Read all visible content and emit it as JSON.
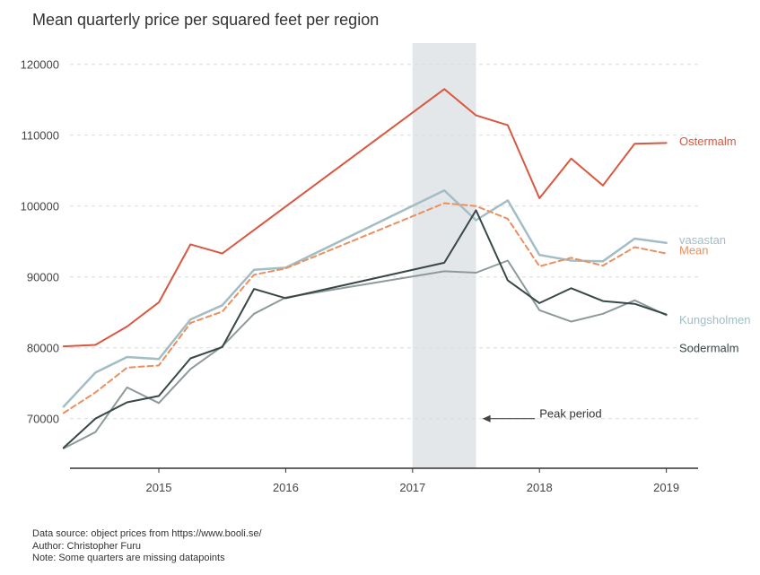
{
  "chart_data": {
    "type": "line",
    "title": "Mean quarterly price per squared feet per region",
    "xlabel": "",
    "ylabel": "",
    "xlim": [
      2014.3,
      2019.25
    ],
    "ylim": [
      63000,
      123000
    ],
    "xticks": [
      2015,
      2016,
      2017,
      2018,
      2019
    ],
    "yticks": [
      70000,
      80000,
      90000,
      100000,
      110000,
      120000
    ],
    "grid": "horizontal dashed",
    "legend": "inline labels at line ends",
    "highlight": {
      "x_start": 2017.0,
      "x_end": 2017.5,
      "color": "#e3e7ea"
    },
    "annotation": {
      "text": "Peak period",
      "arrow_to": [
        2017.55,
        70000
      ],
      "text_at": [
        2018.0,
        70000
      ]
    },
    "series": [
      {
        "name": "Ostermalm",
        "color": "#d9573f",
        "width": 2,
        "dash": "",
        "x": [
          2014.25,
          2014.5,
          2014.75,
          2015.0,
          2015.25,
          2015.5,
          2017.25,
          2017.5,
          2017.75,
          2018.0,
          2018.25,
          2018.5,
          2018.75,
          2019.0
        ],
        "values": [
          80200,
          80400,
          83000,
          86400,
          94600,
          93300,
          116500,
          112800,
          111400,
          101100,
          106700,
          102900,
          108800,
          108900
        ]
      },
      {
        "name": "vasastan",
        "color": "#a3bdc5",
        "width": 2.5,
        "dash": "",
        "x": [
          2014.25,
          2014.5,
          2014.75,
          2015.0,
          2015.25,
          2015.5,
          2015.75,
          2016.0,
          2017.25,
          2017.5,
          2017.75,
          2018.0,
          2018.25,
          2018.5,
          2018.75,
          2019.0
        ],
        "values": [
          71700,
          76500,
          78700,
          78400,
          84000,
          86000,
          91000,
          91300,
          102200,
          98000,
          100800,
          93100,
          92300,
          92200,
          95400,
          94800
        ]
      },
      {
        "name": "Mean",
        "color": "#ec8f5e",
        "width": 2,
        "dash": "6,4",
        "x": [
          2014.25,
          2014.5,
          2014.75,
          2015.0,
          2015.25,
          2015.5,
          2015.75,
          2016.0,
          2017.25,
          2017.5,
          2017.75,
          2018.0,
          2018.25,
          2018.5,
          2018.75,
          2019.0
        ],
        "values": [
          70800,
          73700,
          77200,
          77500,
          83500,
          85100,
          90300,
          91200,
          100400,
          100000,
          98200,
          91500,
          92700,
          91600,
          94200,
          93300
        ]
      },
      {
        "name": "Kungsholmen",
        "color": "#8e9a9a",
        "width": 2,
        "dash": "",
        "x": [
          2014.25,
          2014.5,
          2014.75,
          2015.0,
          2015.25,
          2015.5,
          2015.75,
          2016.0,
          2017.25,
          2017.5,
          2017.75,
          2018.0,
          2018.25,
          2018.5,
          2018.75,
          2019.0
        ],
        "values": [
          65800,
          68100,
          74400,
          72200,
          77000,
          80200,
          84800,
          87100,
          90800,
          90600,
          92300,
          85300,
          83700,
          84800,
          86700,
          84600
        ]
      },
      {
        "name": "Sodermalm",
        "color": "#394747",
        "width": 2,
        "dash": "",
        "x": [
          2014.25,
          2014.5,
          2014.75,
          2015.0,
          2015.25,
          2015.5,
          2015.75,
          2016.0,
          2017.25,
          2017.5,
          2017.75,
          2018.0,
          2018.25,
          2018.5,
          2018.75,
          2019.0
        ],
        "values": [
          65900,
          70000,
          72300,
          73200,
          78500,
          80100,
          88300,
          87000,
          92000,
          99400,
          89500,
          86300,
          88400,
          86600,
          86200,
          84700
        ]
      }
    ],
    "end_labels": [
      {
        "series": "Ostermalm",
        "text": "Ostermalm",
        "color": "#d9573f",
        "y": 109200
      },
      {
        "series": "vasastan",
        "text": "vasastan",
        "color": "#a3bdc5",
        "y": 95300
      },
      {
        "series": "Mean",
        "text": "Mean",
        "color": "#ec8f5e",
        "y": 93800
      },
      {
        "series": "Kungsholmen",
        "text": "Kungsholmen",
        "color": "#a3bdc5",
        "y": 84000
      },
      {
        "series": "Sodermalm",
        "text": "Sodermalm",
        "color": "#394747",
        "y": 80000
      }
    ]
  },
  "notes": [
    "Data source: object prices from https://www.booli.se/",
    "Author: Christopher Furu",
    "Note: Some quarters are missing datapoints"
  ]
}
